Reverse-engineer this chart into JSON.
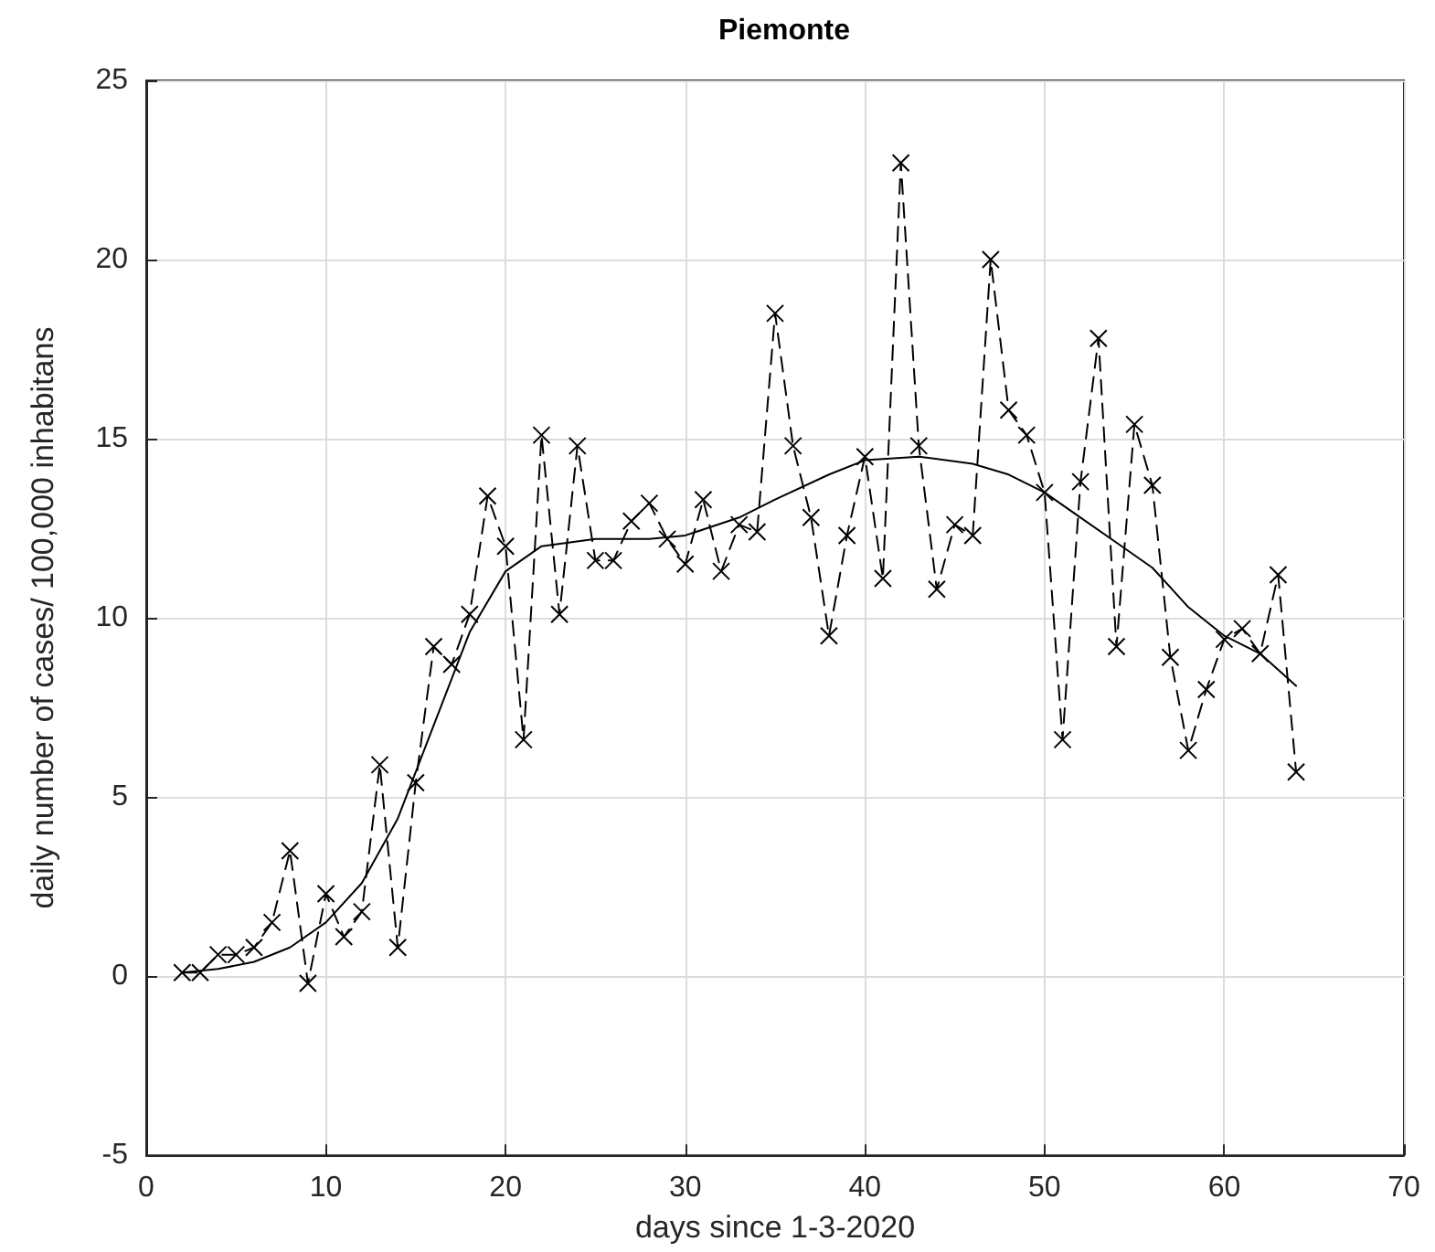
{
  "chart_data": {
    "type": "line",
    "title": "Piemonte",
    "xlabel": "days since 1-3-2020",
    "ylabel": "daily number of cases/ 100,000 inhabitans",
    "xlim": [
      0,
      70
    ],
    "xticks": [
      0,
      10,
      20,
      30,
      40,
      50,
      60,
      70
    ],
    "ylim": [
      -5,
      25
    ],
    "yticks": [
      -5,
      0,
      5,
      10,
      15,
      20,
      25
    ],
    "grid": true,
    "series": [
      {
        "color": "#000000",
        "marker": "cross",
        "line_style": "dashed",
        "x": [
          2,
          3,
          4,
          5,
          6,
          7,
          8,
          9,
          10,
          11,
          12,
          13,
          14,
          15,
          16,
          17,
          18,
          19,
          20,
          21,
          22,
          23,
          24,
          25,
          26,
          27,
          28,
          29,
          30,
          31,
          32,
          33,
          34,
          35,
          36,
          37,
          38,
          39,
          40,
          41,
          42,
          43,
          44,
          45,
          46,
          47,
          48,
          49,
          50,
          51,
          52,
          53,
          54,
          55,
          56,
          57,
          58,
          59,
          60,
          61,
          62,
          63,
          64
        ],
        "values": [
          0.1,
          0.1,
          0.6,
          0.6,
          0.8,
          1.5,
          3.5,
          -0.2,
          2.3,
          1.1,
          1.8,
          5.9,
          0.8,
          5.4,
          9.2,
          8.7,
          10.1,
          13.4,
          12.0,
          6.6,
          15.1,
          10.1,
          14.8,
          11.6,
          11.6,
          12.7,
          13.2,
          12.2,
          11.5,
          13.3,
          11.3,
          12.6,
          12.4,
          18.5,
          14.8,
          12.8,
          9.5,
          12.3,
          14.5,
          11.1,
          22.7,
          14.8,
          10.8,
          12.6,
          12.3,
          20.0,
          15.8,
          15.1,
          13.5,
          6.6,
          13.8,
          17.8,
          9.2,
          15.4,
          13.7,
          8.9,
          6.3,
          8.0,
          9.4,
          9.7,
          9.0,
          11.2,
          5.7
        ]
      },
      {
        "color": "#000000",
        "marker": "none",
        "line_style": "solid",
        "x": [
          2,
          4,
          6,
          8,
          10,
          12,
          14,
          16,
          18,
          20,
          22,
          25,
          28,
          30,
          33,
          35,
          38,
          40,
          43,
          46,
          48,
          50,
          52,
          54,
          56,
          58,
          60,
          62,
          64
        ],
        "values": [
          0.1,
          0.2,
          0.4,
          0.8,
          1.5,
          2.6,
          4.4,
          7.0,
          9.6,
          11.3,
          12.0,
          12.2,
          12.2,
          12.3,
          12.8,
          13.3,
          14.0,
          14.4,
          14.5,
          14.3,
          14.0,
          13.5,
          12.8,
          12.1,
          11.4,
          10.3,
          9.5,
          9.0,
          8.1
        ]
      }
    ]
  }
}
